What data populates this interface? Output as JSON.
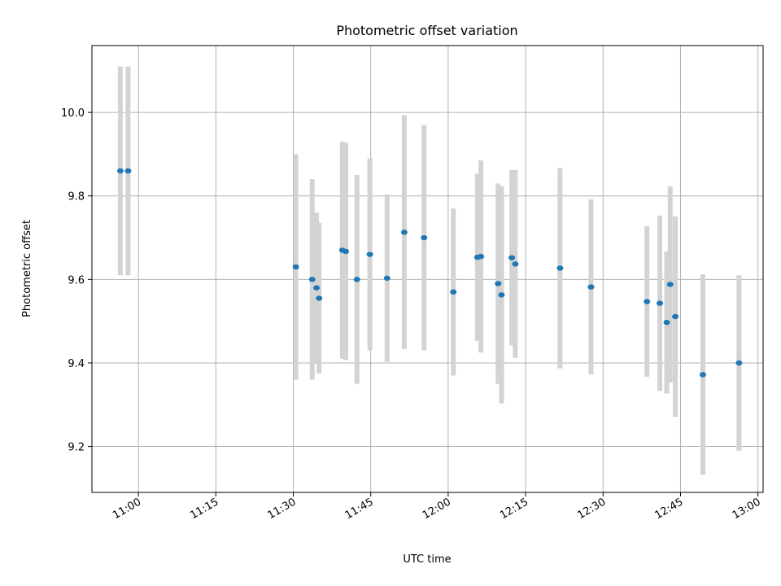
{
  "chart_data": {
    "type": "scatter",
    "title": "Photometric offset variation",
    "xlabel": "UTC time",
    "ylabel": "Photometric offset",
    "x_type": "time",
    "xlim": [
      "10:51",
      "13:01"
    ],
    "ylim": [
      9.09,
      10.16
    ],
    "x_ticks": [
      "11:00",
      "11:15",
      "11:30",
      "11:45",
      "12:00",
      "12:15",
      "12:30",
      "12:45",
      "13:00"
    ],
    "y_ticks": [
      9.2,
      9.4,
      9.6,
      9.8,
      10.0
    ],
    "y_tick_labels": [
      "9.2",
      "9.4",
      "9.6",
      "9.8",
      "10.0"
    ],
    "grid": true,
    "marker_color": "#1f77b4",
    "errorbar_color": "#d3d3d3",
    "points": [
      {
        "time": "10:56:30",
        "y": 9.86,
        "err": 0.25
      },
      {
        "time": "10:58:00",
        "y": 9.86,
        "err": 0.25
      },
      {
        "time": "11:30:30",
        "y": 9.63,
        "err": 0.27
      },
      {
        "time": "11:33:40",
        "y": 9.6,
        "err": 0.24
      },
      {
        "time": "11:34:30",
        "y": 9.58,
        "err": 0.18
      },
      {
        "time": "11:35:00",
        "y": 9.555,
        "err": 0.18
      },
      {
        "time": "11:39:30",
        "y": 9.67,
        "err": 0.26
      },
      {
        "time": "11:40:10",
        "y": 9.667,
        "err": 0.26
      },
      {
        "time": "11:42:20",
        "y": 9.6,
        "err": 0.25
      },
      {
        "time": "11:44:50",
        "y": 9.66,
        "err": 0.23
      },
      {
        "time": "11:48:10",
        "y": 9.603,
        "err": 0.2
      },
      {
        "time": "11:51:30",
        "y": 9.713,
        "err": 0.28
      },
      {
        "time": "11:55:20",
        "y": 9.7,
        "err": 0.27
      },
      {
        "time": "12:01:00",
        "y": 9.57,
        "err": 0.2
      },
      {
        "time": "12:05:40",
        "y": 9.653,
        "err": 0.2
      },
      {
        "time": "12:06:20",
        "y": 9.655,
        "err": 0.23
      },
      {
        "time": "12:09:40",
        "y": 9.59,
        "err": 0.24
      },
      {
        "time": "12:10:20",
        "y": 9.563,
        "err": 0.26
      },
      {
        "time": "12:12:20",
        "y": 9.652,
        "err": 0.21
      },
      {
        "time": "12:13:00",
        "y": 9.637,
        "err": 0.225
      },
      {
        "time": "12:21:40",
        "y": 9.627,
        "err": 0.24
      },
      {
        "time": "12:27:40",
        "y": 9.582,
        "err": 0.21
      },
      {
        "time": "12:38:30",
        "y": 9.547,
        "err": 0.18
      },
      {
        "time": "12:41:00",
        "y": 9.543,
        "err": 0.21
      },
      {
        "time": "12:42:20",
        "y": 9.497,
        "err": 0.17
      },
      {
        "time": "12:43:00",
        "y": 9.588,
        "err": 0.235
      },
      {
        "time": "12:44:00",
        "y": 9.511,
        "err": 0.24
      },
      {
        "time": "12:49:20",
        "y": 9.372,
        "err": 0.24
      },
      {
        "time": "12:56:20",
        "y": 9.4,
        "err": 0.21
      }
    ]
  }
}
